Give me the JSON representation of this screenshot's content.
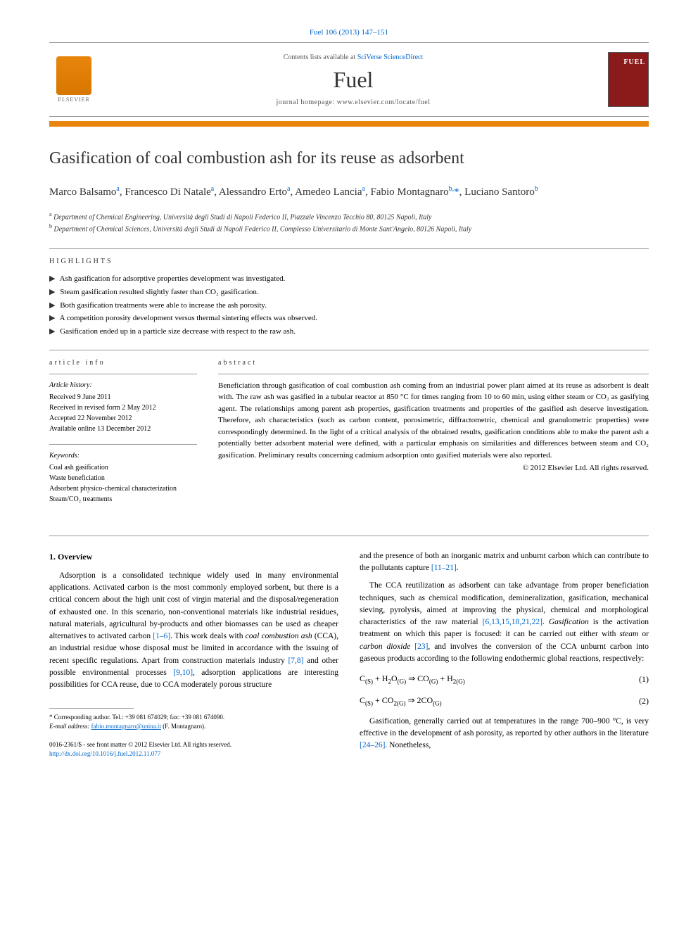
{
  "citation": "Fuel 106 (2013) 147–151",
  "header": {
    "contents_prefix": "Contents lists available at ",
    "contents_link": "SciVerse ScienceDirect",
    "journal": "Fuel",
    "homepage_prefix": "journal homepage: ",
    "homepage_url": "www.elsevier.com/locate/fuel",
    "publisher": "ELSEVIER",
    "cover_label": "FUEL"
  },
  "title": "Gasification of coal combustion ash for its reuse as adsorbent",
  "authors_html": "Marco Balsamo<sup>a</sup>, Francesco Di Natale<sup>a</sup>, Alessandro Erto<sup>a</sup>, Amedeo Lancia<sup>a</sup>, Fabio Montagnaro<sup>b,</sup><span class='corr'>*</span>, Luciano Santoro<sup>b</sup>",
  "affiliations": [
    "Department of Chemical Engineering, Università degli Studi di Napoli Federico II, Piazzale Vincenzo Tecchio 80, 80125 Napoli, Italy",
    "Department of Chemical Sciences, Università degli Studi di Napoli Federico II, Complesso Universitario di Monte Sant'Angelo, 80126 Napoli, Italy"
  ],
  "highlights_label": "highlights",
  "highlights": [
    "Ash gasification for adsorptive properties development was investigated.",
    "Steam gasification resulted slightly faster than CO₂ gasification.",
    "Both gasification treatments were able to increase the ash porosity.",
    "A competition porosity development versus thermal sintering effects was observed.",
    "Gasification ended up in a particle size decrease with respect to the raw ash."
  ],
  "article_info_label": "article info",
  "history_label": "Article history:",
  "history": [
    "Received 9 June 2011",
    "Received in revised form 2 May 2012",
    "Accepted 22 November 2012",
    "Available online 13 December 2012"
  ],
  "keywords_label": "Keywords:",
  "keywords": [
    "Coal ash gasification",
    "Waste beneficiation",
    "Adsorbent physico-chemical characterization",
    "Steam/CO₂ treatments"
  ],
  "abstract_label": "abstract",
  "abstract": "Beneficiation through gasification of coal combustion ash coming from an industrial power plant aimed at its reuse as adsorbent is dealt with. The raw ash was gasified in a tubular reactor at 850 °C for times ranging from 10 to 60 min, using either steam or CO₂ as gasifying agent. The relationships among parent ash properties, gasification treatments and properties of the gasified ash deserve investigation. Therefore, ash characteristics (such as carbon content, porosimetric, diffractometric, chemical and granulometric properties) were correspondingly determined. In the light of a critical analysis of the obtained results, gasification conditions able to make the parent ash a potentially better adsorbent material were defined, with a particular emphasis on similarities and differences between steam and CO₂ gasification. Preliminary results concerning cadmium adsorption onto gasified materials were also reported.",
  "abstract_copyright": "© 2012 Elsevier Ltd. All rights reserved.",
  "body": {
    "section_heading": "1. Overview",
    "left_paragraphs": [
      "Adsorption is a consolidated technique widely used in many environmental applications. Activated carbon is the most commonly employed sorbent, but there is a critical concern about the high unit cost of virgin material and the disposal/regeneration of exhausted one. In this scenario, non-conventional materials like industrial residues, natural materials, agricultural by-products and other biomasses can be used as cheaper alternatives to activated carbon [1–6]. This work deals with coal combustion ash (CCA), an industrial residue whose disposal must be limited in accordance with the issuing of recent specific regulations. Apart from construction materials industry [7,8] and other possible environmental processes [9,10], adsorption applications are interesting possibilities for CCA reuse, due to CCA moderately porous structure"
    ],
    "right_paragraphs": [
      "and the presence of both an inorganic matrix and unburnt carbon which can contribute to the pollutants capture [11–21].",
      "The CCA reutilization as adsorbent can take advantage from proper beneficiation techniques, such as chemical modification, demineralization, gasification, mechanical sieving, pyrolysis, aimed at improving the physical, chemical and morphological characteristics of the raw material [6,13,15,18,21,22]. Gasification is the activation treatment on which this paper is focused: it can be carried out either with steam or carbon dioxide [23], and involves the conversion of the CCA unburnt carbon into gaseous products according to the following endothermic global reactions, respectively:"
    ],
    "equations": [
      {
        "lhs": "C(S) + H₂O(G) ⇒ CO(G) + H₂(G)",
        "num": "(1)"
      },
      {
        "lhs": "C(S) + CO₂(G) ⇒ 2CO(G)",
        "num": "(2)"
      }
    ],
    "right_tail": "Gasification, generally carried out at temperatures in the range 700–900 °C, is very effective in the development of ash porosity, as reported by other authors in the literature [24–26]. Nonetheless,"
  },
  "footnote": {
    "corr_label": "* Corresponding author. Tel.: +39 081 674029; fax: +39 081 674090.",
    "email_label": "E-mail address:",
    "email": "fabio.montagnaro@unina.it",
    "email_person": "(F. Montagnaro)."
  },
  "footer": {
    "front_matter": "0016-2361/$ - see front matter © 2012 Elsevier Ltd. All rights reserved.",
    "doi": "http://dx.doi.org/10.1016/j.fuel.2012.11.077"
  },
  "colors": {
    "accent_orange": "#e8850c",
    "link": "#0066cc",
    "cover_red": "#8b1a1a",
    "rule": "#999999",
    "text": "#000000"
  }
}
